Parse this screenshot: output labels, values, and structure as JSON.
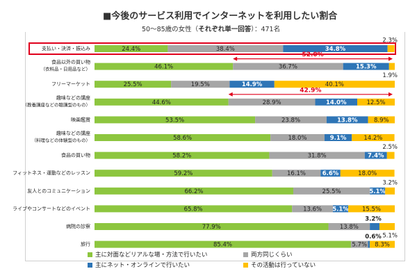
{
  "header": {
    "title": "■今後のサービス利用でインターネットを利用したい割合",
    "subtitle_prefix": "50～85歳の女性（",
    "subtitle_bold": "それぞれ単一回答",
    "subtitle_suffix": "）：471名"
  },
  "colors": {
    "real": "#8dc63f",
    "either": "#a6a6a6",
    "online": "#2e75b6",
    "none": "#ffc000",
    "highlight_box": "#e0001b",
    "bracket": "#e0001b"
  },
  "chart_data": {
    "type": "bar",
    "orientation": "horizontal",
    "stacked": true,
    "unit": "%",
    "xlim": [
      0,
      100
    ],
    "grid": false,
    "legend_position": "bottom",
    "categories": [
      [
        "支払い・決済・振込み"
      ],
      [
        "食品以外の買い物",
        "（衣料品・日用品など）"
      ],
      [
        "フリーマーケット"
      ],
      [
        "趣味などの講座",
        "（教養講座などの聴講型のもの）"
      ],
      [
        "映画鑑賞"
      ],
      [
        "趣味などの講座",
        "（料理などの体験型のもの）"
      ],
      [
        "食品の買い物"
      ],
      [
        "フィットネス・運動などのレッスン"
      ],
      [
        "友人とのコミュニケーション"
      ],
      [
        "ライブやコンサートなどのイベント"
      ],
      [
        "病院の診察"
      ],
      [
        "旅行"
      ]
    ],
    "series": [
      {
        "name": "主に対面などリアルな場・方法で行いたい",
        "key": "real",
        "values": [
          24.4,
          46.1,
          25.5,
          44.6,
          53.5,
          58.6,
          58.2,
          59.2,
          66.2,
          65.8,
          77.9,
          85.4
        ]
      },
      {
        "name": "両方同じくらい",
        "key": "either",
        "values": [
          38.4,
          36.7,
          19.5,
          28.9,
          23.8,
          18.0,
          31.8,
          16.1,
          25.5,
          13.6,
          13.8,
          5.7
        ]
      },
      {
        "name": "主にネット・オンラインで行いたい",
        "key": "online",
        "values": [
          34.8,
          15.3,
          14.9,
          14.0,
          13.8,
          9.1,
          7.4,
          6.6,
          5.1,
          5.1,
          3.2,
          0.6
        ]
      },
      {
        "name": "その活動は行っていない",
        "key": "none",
        "values": [
          2.3,
          1.9,
          40.1,
          12.5,
          8.9,
          14.2,
          2.5,
          18.0,
          3.2,
          15.5,
          5.1,
          8.3
        ]
      }
    ],
    "outside_labels": [
      {
        "row": 0,
        "series": "none",
        "text": "2.3%"
      },
      {
        "row": 1,
        "series": "none",
        "text": "1.9%"
      },
      {
        "row": 6,
        "series": "none",
        "text": "2.5%"
      },
      {
        "row": 8,
        "series": "none",
        "text": "3.2%"
      },
      {
        "row": 10,
        "series": "online",
        "text": "3.2%"
      },
      {
        "row": 11,
        "series": "online",
        "text": "0.6%"
      },
      {
        "row": 10,
        "series": "none",
        "text": "5.1%"
      }
    ],
    "brackets": [
      {
        "row": 1,
        "from": 46.1,
        "to": 100,
        "text": "52.0%"
      },
      {
        "row": 3,
        "from": 44.6,
        "to": 100,
        "text": "42.9%"
      }
    ],
    "highlighted_row": 0
  }
}
